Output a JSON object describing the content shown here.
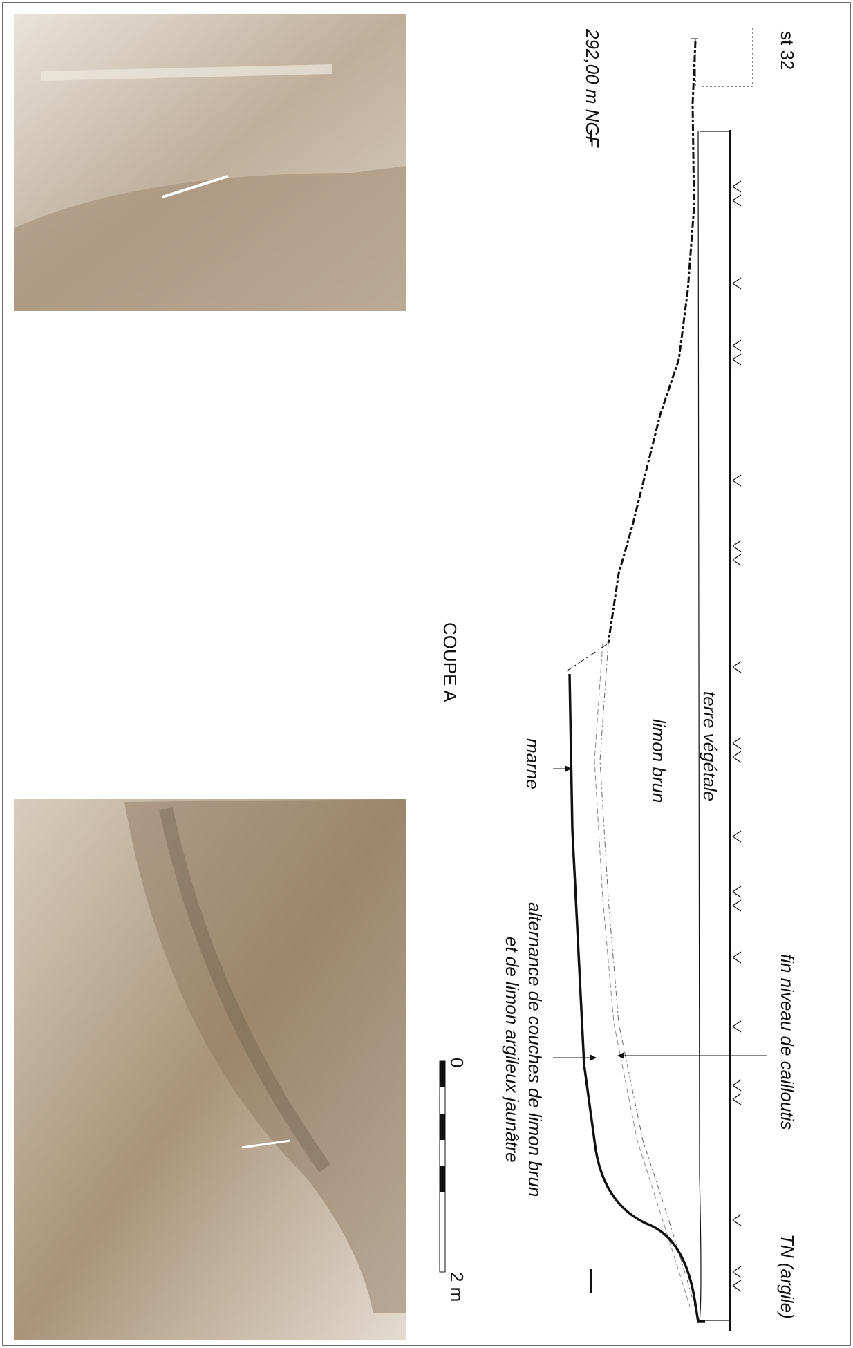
{
  "header": {
    "structure": "st 32",
    "reference_level": "292,00 m NGF"
  },
  "layers": {
    "topsoil": "terre végétale",
    "brown_silt": "limon brun",
    "marl": "marne"
  },
  "section_title": "COUPE A",
  "annotations": {
    "gravel": "fin niveau de cailloutis",
    "alternation": [
      "alternance de couches de limon brun",
      "et de limon argileux jaunâtre"
    ],
    "natural_ground": "TN (argile)"
  },
  "scale_bar": {
    "start": "0",
    "end": "2 m"
  }
}
